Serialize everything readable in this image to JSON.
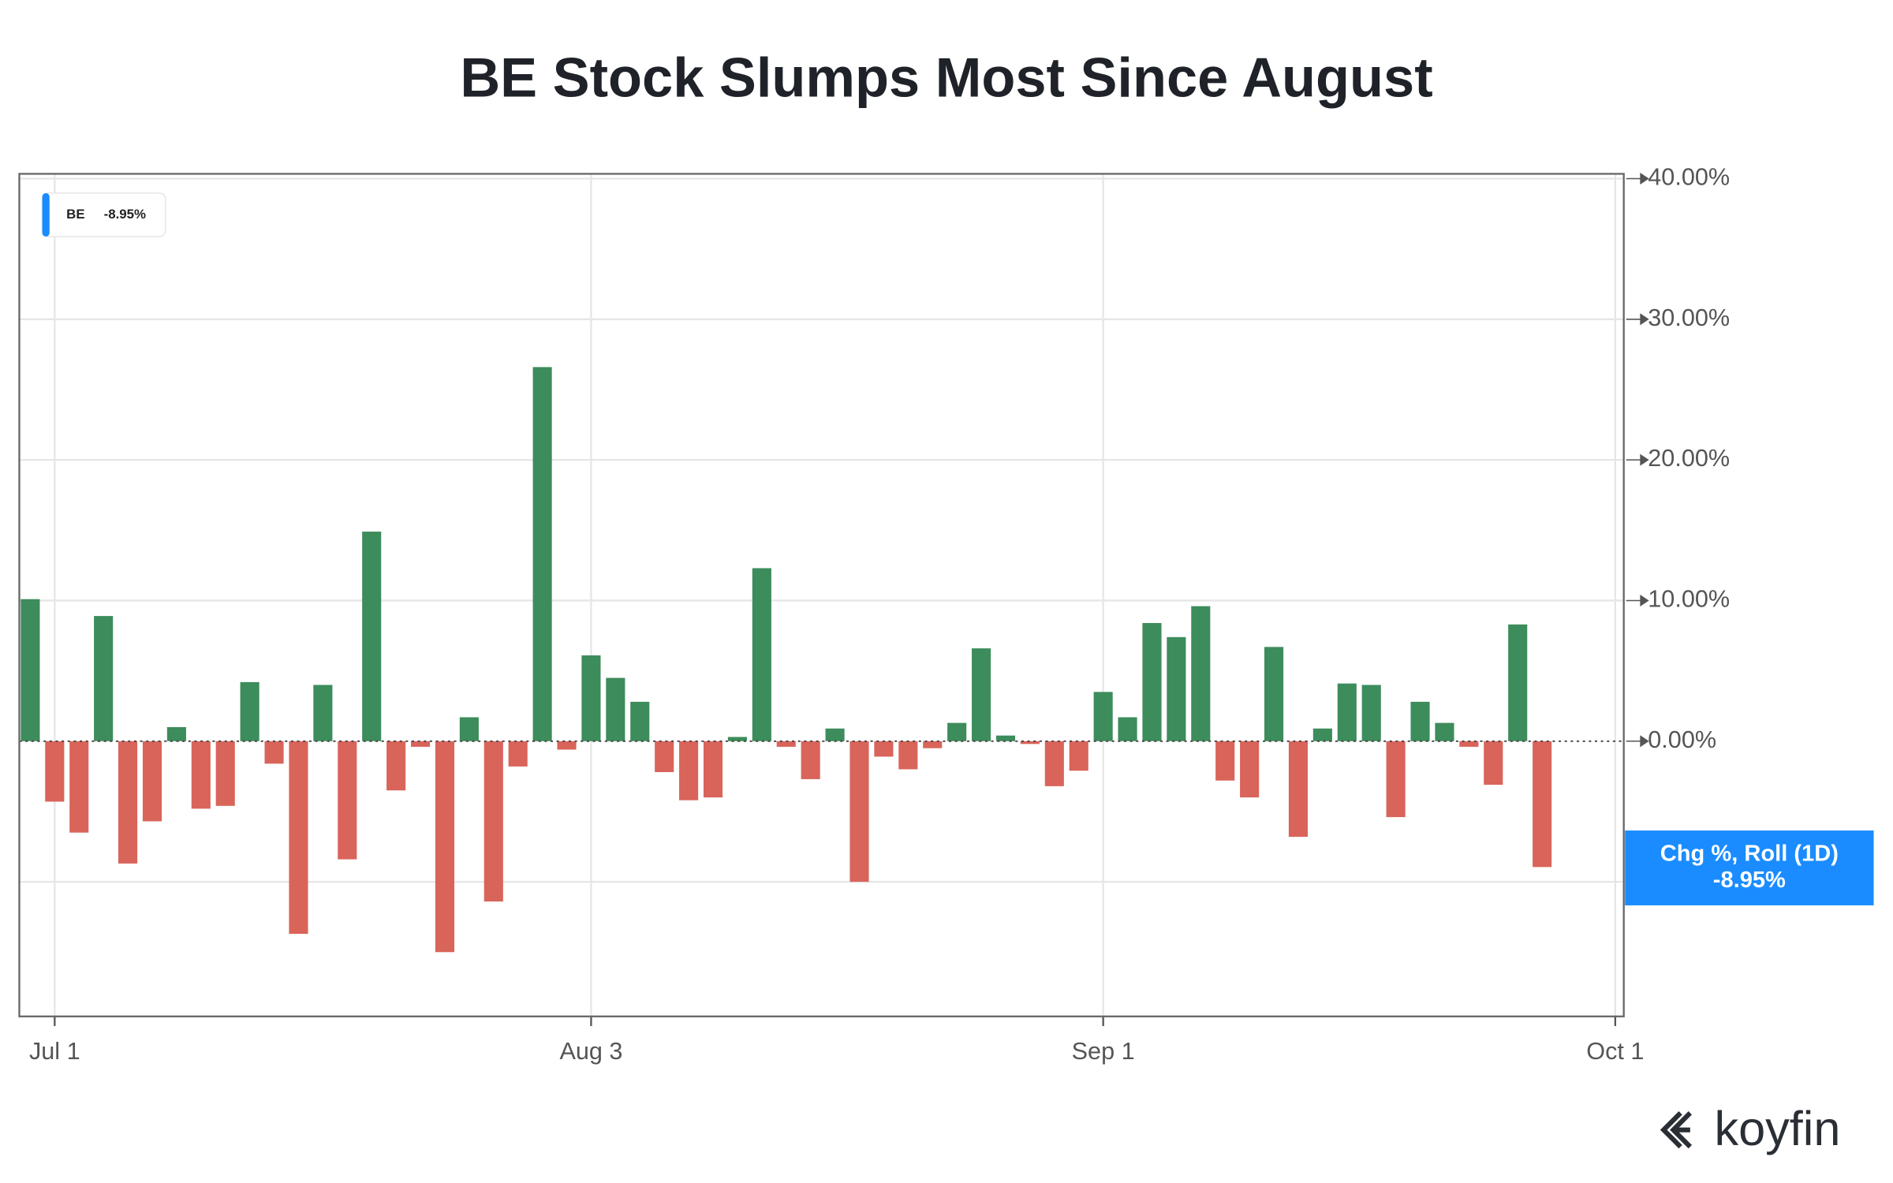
{
  "chart_data": {
    "type": "bar",
    "title": "BE Stock Slumps Most Since August",
    "series": [
      {
        "name": "BE",
        "values": [
          10.1,
          -4.3,
          -6.5,
          8.9,
          -8.7,
          -5.7,
          1.0,
          -4.8,
          -4.6,
          4.2,
          -1.6,
          -13.7,
          4.0,
          -8.4,
          14.9,
          -3.5,
          -0.4,
          -15.0,
          1.7,
          -11.4,
          -1.8,
          26.6,
          -0.6,
          6.1,
          4.5,
          2.8,
          -2.2,
          -4.2,
          -4.0,
          0.3,
          12.3,
          -0.4,
          -2.7,
          0.9,
          -10.0,
          -1.1,
          -2.0,
          -0.5,
          1.3,
          6.6,
          0.4,
          -0.2,
          -3.2,
          -2.1,
          3.5,
          1.7,
          8.4,
          7.4,
          9.6,
          -2.8,
          -4.0,
          6.7,
          -6.8,
          0.9,
          4.1,
          4.0,
          -5.4,
          2.8,
          1.3,
          -0.4,
          -3.1,
          8.3,
          -8.95
        ]
      }
    ],
    "positive_color": "#3d8c5c",
    "negative_color": "#d9645a",
    "legend_value": "-8.95%",
    "badge_title": "Chg %, Roll (1D)",
    "badge_value": "-8.95%",
    "badge_color": "#1a8cff",
    "xlim": [
      -0.45,
      65.35
    ],
    "xticks": [
      {
        "value": 1,
        "label": "Jul 1"
      },
      {
        "value": 23,
        "label": "Aug 3"
      },
      {
        "value": 44,
        "label": "Sep 1"
      },
      {
        "value": 65,
        "label": "Oct 1"
      }
    ],
    "ylim": [
      -19.57,
      40.34
    ],
    "yticks": [
      {
        "value": -10,
        "label": null
      },
      {
        "value": 0,
        "label": "0.00%"
      },
      {
        "value": 10,
        "label": "10.00%"
      },
      {
        "value": 20,
        "label": "20.00%"
      },
      {
        "value": 30,
        "label": "30.00%"
      },
      {
        "value": 40,
        "label": "40.00%"
      }
    ],
    "grid": true,
    "brand": "koyfin"
  }
}
